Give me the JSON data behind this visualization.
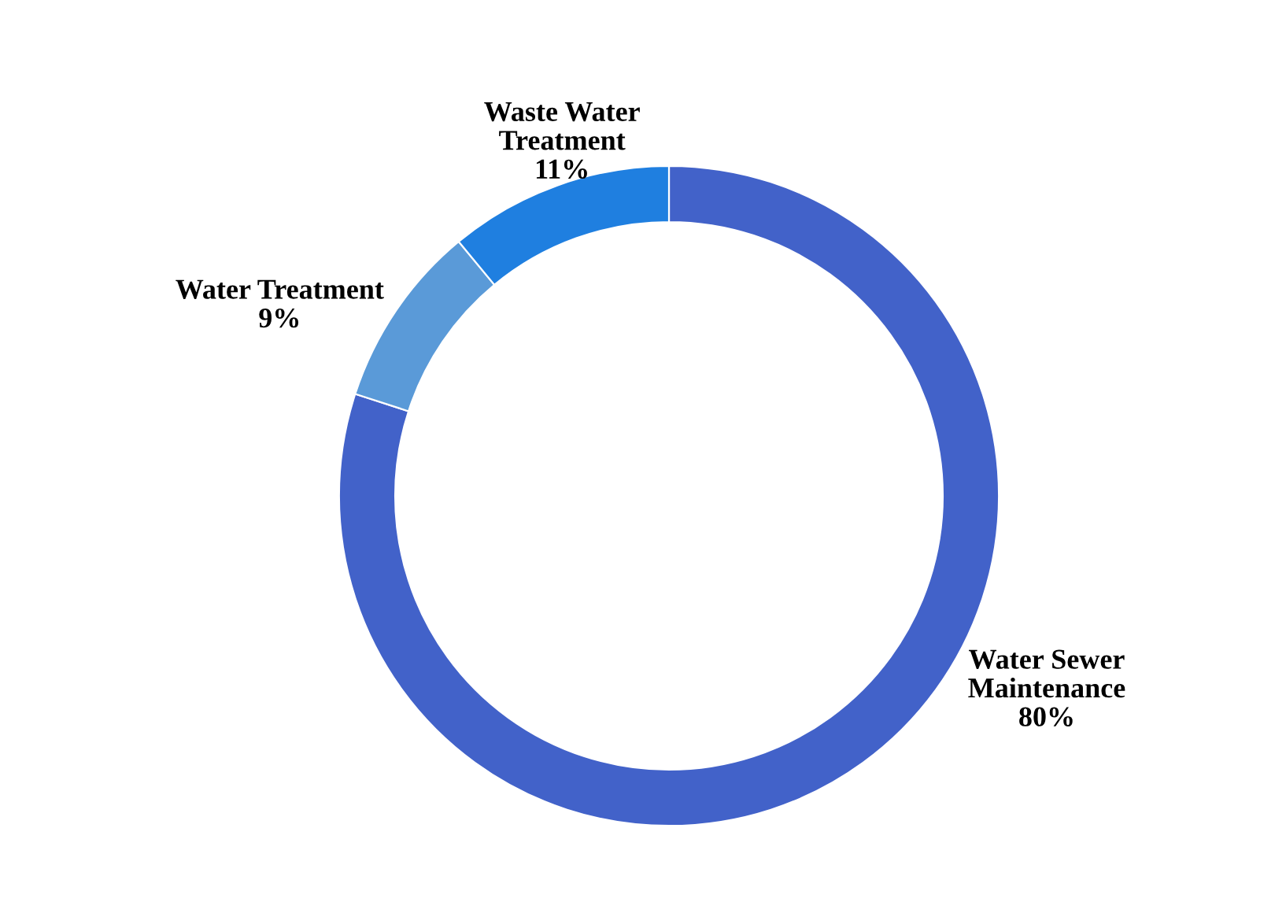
{
  "chart_data": {
    "type": "donut",
    "categories": [
      "Water Sewer Maintenance",
      "Water Treatment",
      "Waste Water Treatment"
    ],
    "values": [
      80,
      9,
      11
    ],
    "value_labels": [
      "80%",
      "9%",
      "11%"
    ],
    "colors": [
      "#4262c9",
      "#5a9ad8",
      "#1f7fe0"
    ]
  }
}
